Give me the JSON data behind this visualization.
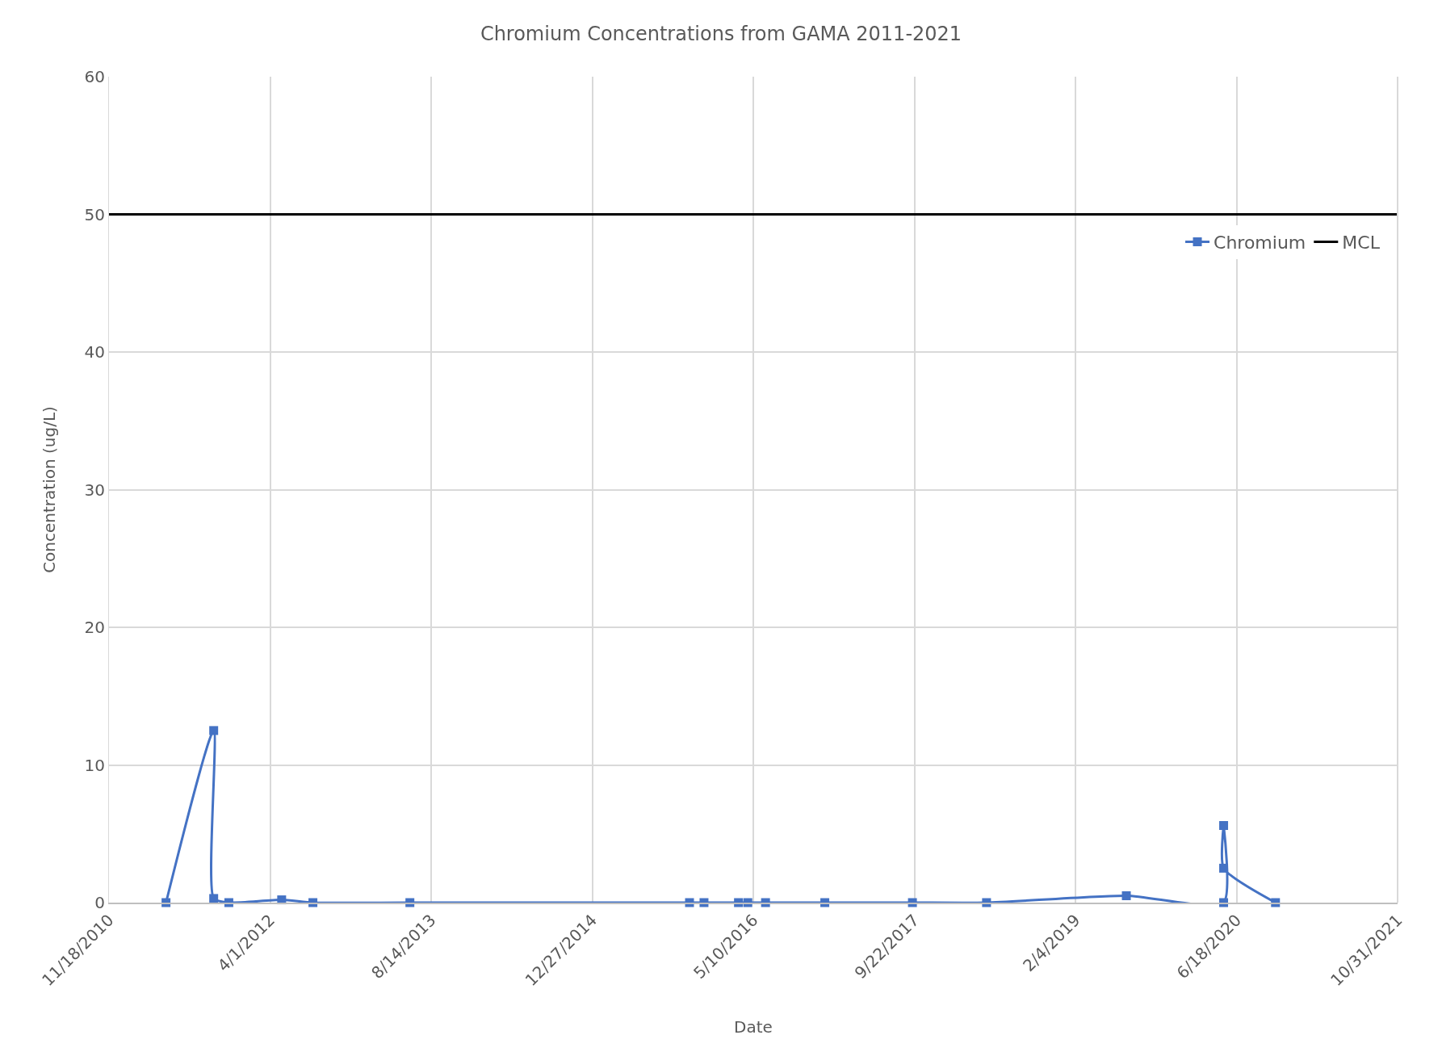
{
  "chart_data": {
    "type": "line",
    "title": "Chromium Concentrations from GAMA 2011-2021",
    "xlabel": "Date",
    "ylabel": "Concentration (ug/L)",
    "series": [
      {
        "name": "Chromium",
        "color": "#4472c4",
        "x": [
          "2011-05-14",
          "2011-10-09",
          "2011-10-09",
          "2011-11-25",
          "2012-05-07",
          "2012-08-12",
          "2013-06-09",
          "2015-10-25",
          "2015-12-09",
          "2016-03-25",
          "2016-04-23",
          "2016-06-17",
          "2016-12-18",
          "2017-09-16",
          "2018-05-04",
          "2019-07-12",
          "2020-05-09",
          "2020-05-09",
          "2020-05-09",
          "2020-10-17"
        ],
        "values": [
          0,
          12.5,
          0.3,
          0,
          0.2,
          0,
          0,
          0,
          0,
          0,
          0,
          0,
          0,
          0,
          0,
          0.5,
          0,
          5.6,
          2.5,
          0
        ]
      }
    ],
    "ref_lines": [
      {
        "axis": "y",
        "value": 50,
        "label": "MCL",
        "color": "#000000"
      }
    ],
    "xlim": [
      "2010-11-18",
      "2021-10-31"
    ],
    "xticks": [
      {
        "value": "2010-11-18",
        "label": "11/18/2010"
      },
      {
        "value": "2012-04-01",
        "label": "4/1/2012"
      },
      {
        "value": "2013-08-14",
        "label": "8/14/2013"
      },
      {
        "value": "2014-12-27",
        "label": "12/27/2014"
      },
      {
        "value": "2016-05-10",
        "label": "5/10/2016"
      },
      {
        "value": "2017-09-22",
        "label": "9/22/2017"
      },
      {
        "value": "2019-02-04",
        "label": "2/4/2019"
      },
      {
        "value": "2020-06-18",
        "label": "6/18/2020"
      },
      {
        "value": "2021-10-31",
        "label": "10/31/2021"
      }
    ],
    "ylim": [
      0,
      60
    ],
    "yticks": [
      0,
      10,
      20,
      30,
      40,
      50,
      60
    ],
    "grid": true,
    "legend": "top right",
    "marker": "square",
    "line_style": "solid"
  }
}
